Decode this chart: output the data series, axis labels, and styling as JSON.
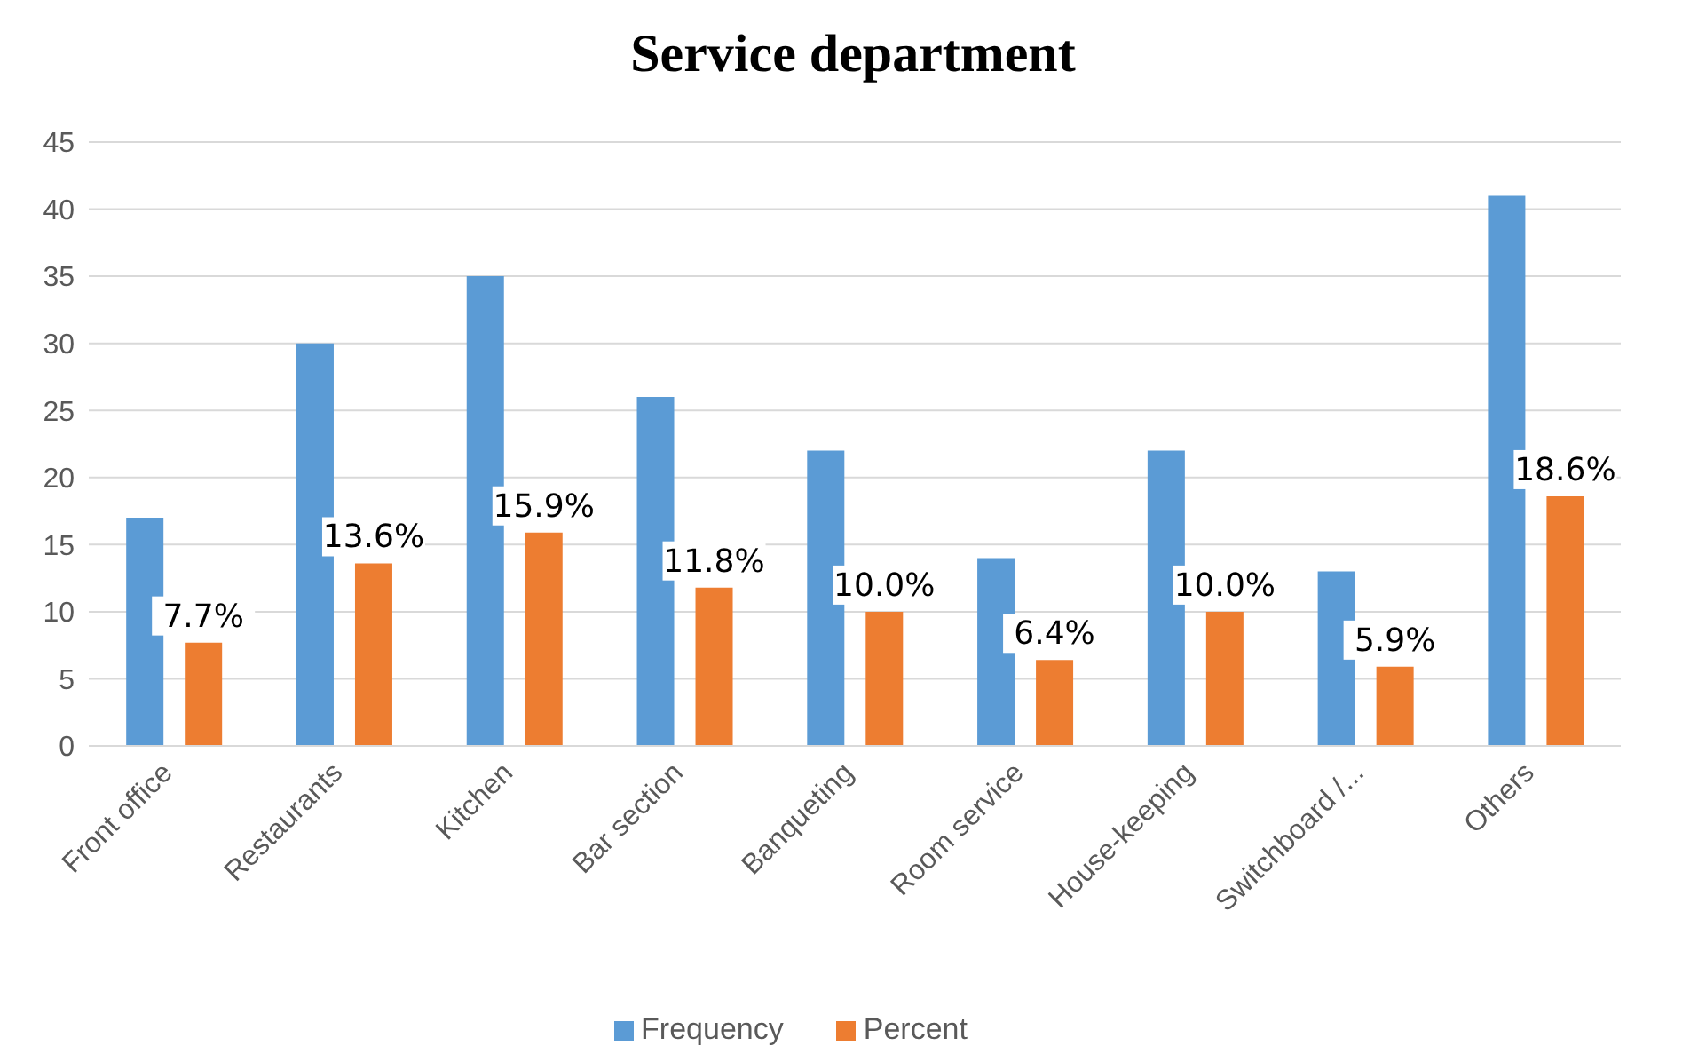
{
  "chart_data": {
    "type": "bar",
    "title": "Service department",
    "categories": [
      "Front office",
      "Restaurants",
      "Kitchen",
      "Bar section",
      "Banqueting",
      "Room service",
      "House-keeping",
      "Switchboard /...",
      "Others"
    ],
    "series": [
      {
        "name": "Frequency",
        "color": "#5b9bd5",
        "values": [
          17,
          30,
          35,
          26,
          22,
          14,
          22,
          13,
          41
        ]
      },
      {
        "name": "Percent",
        "color": "#ed7d31",
        "values": [
          7.7,
          13.6,
          15.9,
          11.8,
          10.0,
          6.4,
          10.0,
          5.9,
          18.6
        ],
        "value_labels": [
          "7.7%",
          "13.6%",
          "15.9%",
          "11.8%",
          "10.0%",
          "6.4%",
          "10.0%",
          "5.9%",
          "18.6%"
        ]
      }
    ],
    "ylim": [
      0,
      45
    ],
    "yticks": [
      0,
      5,
      10,
      15,
      20,
      25,
      30,
      35,
      40,
      45
    ],
    "grid": "y",
    "legend": "bottom"
  }
}
